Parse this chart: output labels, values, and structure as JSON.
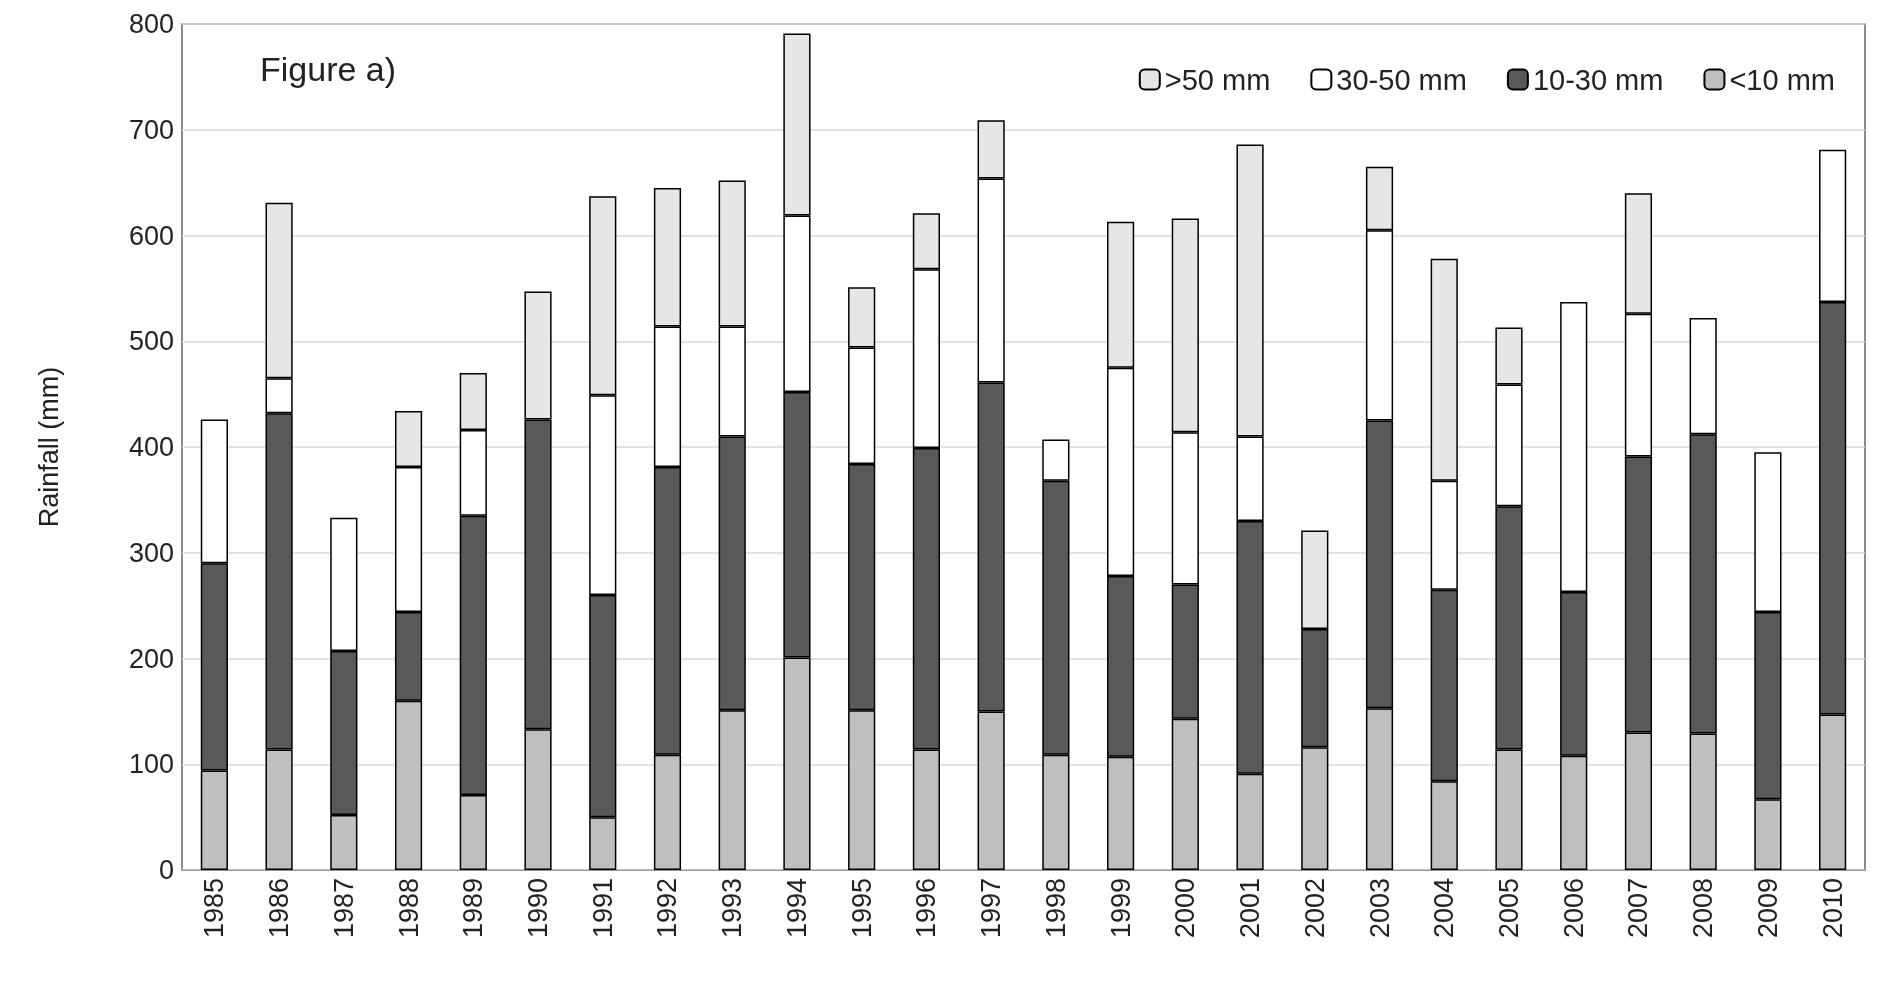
{
  "chart_data": {
    "type": "bar",
    "stacked": true,
    "ylabel": "Rainfall (mm)",
    "annotations": [
      "Figure a)"
    ],
    "categories": [
      "1985",
      "1986",
      "1987",
      "1988",
      "1989",
      "1990",
      "1991",
      "1992",
      "1993",
      "1994",
      "1995",
      "1996",
      "1997",
      "1998",
      "1999",
      "2000",
      "2001",
      "2002",
      "2003",
      "2004",
      "2005",
      "2006",
      "2007",
      "2008",
      "2009",
      "2010"
    ],
    "series": [
      {
        "name": "<10 mm",
        "color": "#bfbfbf",
        "values": [
          94,
          114,
          52,
          160,
          71,
          133,
          50,
          109,
          151,
          201,
          151,
          114,
          150,
          109,
          107,
          143,
          91,
          116,
          153,
          84,
          114,
          108,
          130,
          129,
          67,
          147
        ]
      },
      {
        "name": "10-30 mm",
        "color": "#595959",
        "values": [
          196,
          318,
          155,
          84,
          264,
          293,
          210,
          272,
          259,
          251,
          233,
          285,
          311,
          259,
          171,
          127,
          239,
          112,
          272,
          181,
          230,
          155,
          261,
          283,
          177,
          390
        ]
      },
      {
        "name": "30-50 mm",
        "color": "#ffffff",
        "values": [
          136,
          33,
          126,
          137,
          81,
          null,
          189,
          133,
          104,
          167,
          110,
          169,
          193,
          39,
          197,
          144,
          80,
          null,
          180,
          103,
          115,
          274,
          135,
          110,
          151,
          144
        ]
      },
      {
        "name": ">50 mm",
        "color": "#e6e6e6",
        "values": [
          null,
          166,
          null,
          53,
          54,
          121,
          188,
          131,
          138,
          172,
          57,
          53,
          55,
          null,
          138,
          202,
          276,
          93,
          60,
          210,
          54,
          null,
          114,
          null,
          null,
          null
        ]
      }
    ],
    "ylim": [
      0,
      800
    ],
    "yticks": [
      0,
      100,
      200,
      300,
      400,
      500,
      600,
      700,
      800
    ],
    "grid": "y",
    "legend": "top right"
  }
}
